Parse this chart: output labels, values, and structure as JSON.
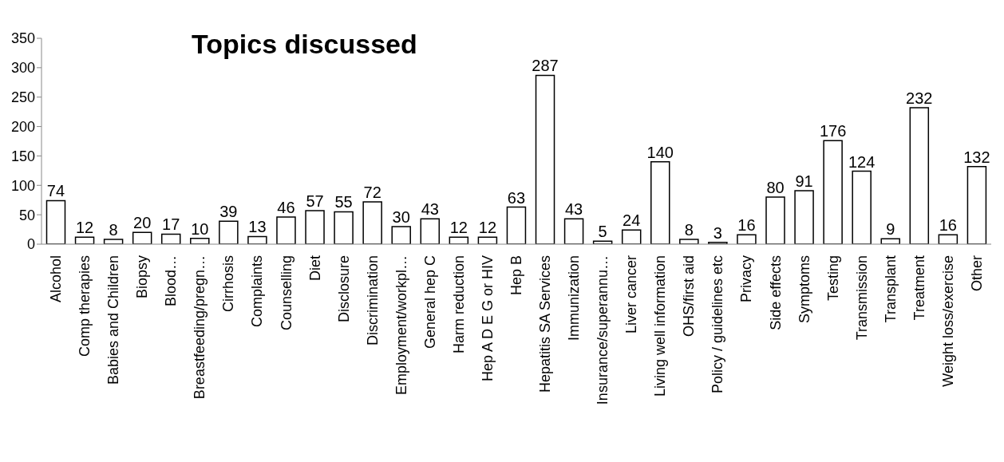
{
  "chart_data": {
    "type": "bar",
    "title": "Topics discussed",
    "categories": [
      "Alcohol",
      "Comp therapies",
      "Babies and Children",
      "Biopsy",
      "Blood…",
      "Breastfeeding/pregn…",
      "Cirrhosis",
      "Complaints",
      "Counselling",
      "Diet",
      "Disclosure",
      "Discrimination",
      "Employment/workpl…",
      "General hep C",
      "Harm reduction",
      "Hep A  D  E  G or HIV",
      "Hep B",
      "Hepatitis SA Services",
      "Immunization",
      "Insurance/superannu…",
      "Liver cancer",
      "Living well information",
      "OHS/first aid",
      "Policy / guidelines etc",
      "Privacy",
      "Side effects",
      "Symptoms",
      "Testing",
      "Transmission",
      "Transplant",
      "Treatment",
      "Weight loss/exercise",
      "Other"
    ],
    "values": [
      74,
      12,
      8,
      20,
      17,
      10,
      39,
      13,
      46,
      57,
      55,
      72,
      30,
      43,
      12,
      12,
      63,
      287,
      43,
      5,
      24,
      140,
      8,
      3,
      16,
      80,
      91,
      176,
      124,
      9,
      232,
      16,
      132
    ],
    "color": "#ffffff",
    "ylim": [
      0,
      350
    ],
    "yticks": [
      0,
      50,
      100,
      150,
      200,
      250,
      300,
      350
    ],
    "data_labels": true,
    "grid": false
  }
}
